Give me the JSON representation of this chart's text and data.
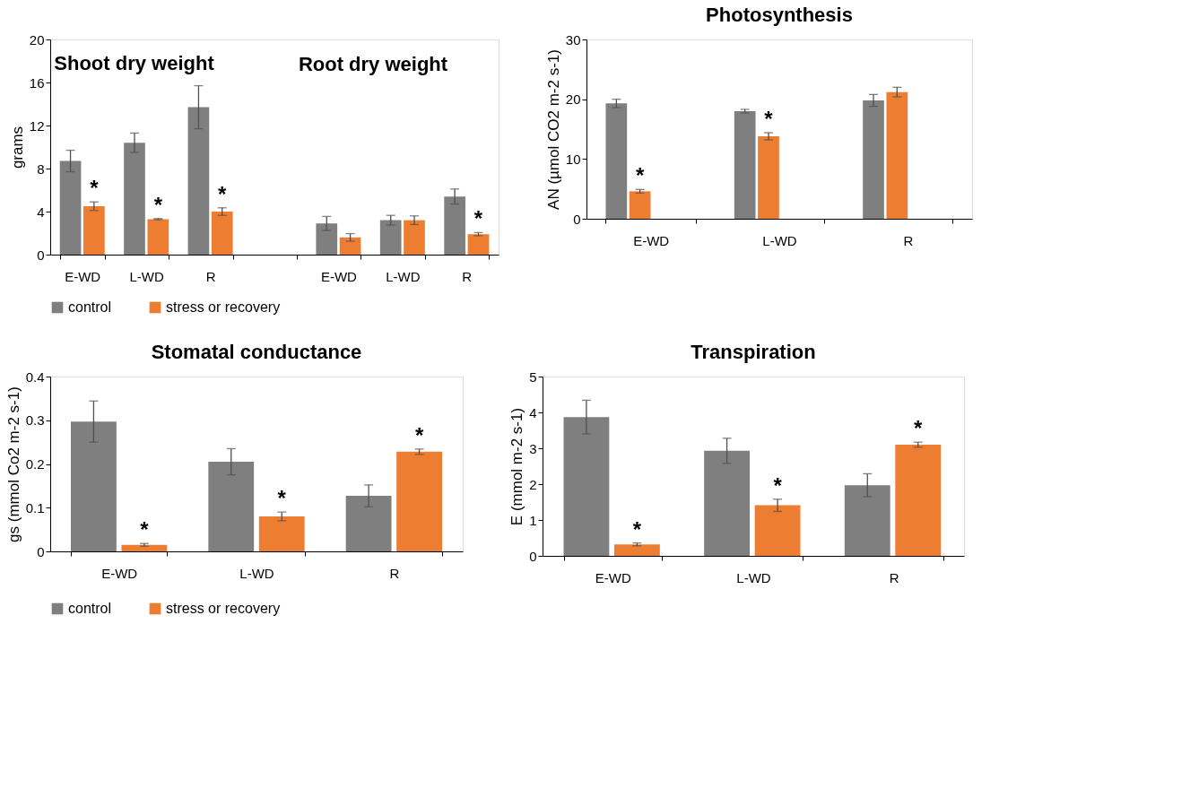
{
  "chart_data": [
    {
      "type": "bar",
      "title": "Shoot dry weight",
      "ylabel": "grams",
      "annotations": [
        "Root dry weight"
      ],
      "categories": [
        "E-WD",
        "L-WD",
        "R",
        null,
        "E-WD",
        "L-WD",
        "R"
      ],
      "ylim": [
        0,
        20
      ],
      "yticks": [
        0,
        4,
        8,
        12,
        16,
        20
      ],
      "grid": false,
      "legend": "bottom",
      "series": [
        {
          "name": "control",
          "color": "#7f7f7f",
          "values": [
            8.7,
            10.4,
            13.7,
            null,
            2.9,
            3.2,
            5.4
          ],
          "errors": [
            1.0,
            0.9,
            2.0,
            null,
            0.65,
            0.45,
            0.7
          ]
        },
        {
          "name": "stress or recovery",
          "color": "#ed7d31",
          "values": [
            4.5,
            3.3,
            4.0,
            null,
            1.6,
            3.2,
            1.9
          ],
          "errors": [
            0.4,
            0.05,
            0.35,
            null,
            0.35,
            0.4,
            0.15
          ],
          "value_labels": [
            "*",
            "*",
            "*",
            null,
            null,
            null,
            "*"
          ]
        }
      ]
    },
    {
      "type": "bar",
      "title": "Photosynthesis",
      "ylabel": "AN (µmol CO2 m-2 s-1)",
      "categories": [
        "E-WD",
        "L-WD",
        "R"
      ],
      "ylim": [
        0,
        30
      ],
      "yticks": [
        0,
        10,
        20,
        30
      ],
      "grid": false,
      "legend": "bottom",
      "series": [
        {
          "name": "control",
          "color": "#7f7f7f",
          "values": [
            19.3,
            18.0,
            19.8
          ],
          "errors": [
            0.7,
            0.3,
            1.0
          ]
        },
        {
          "name": "stress or recovery",
          "color": "#ed7d31",
          "values": [
            4.6,
            13.8,
            21.2
          ],
          "errors": [
            0.3,
            0.6,
            0.8
          ],
          "value_labels": [
            "*",
            "*",
            null
          ]
        }
      ]
    },
    {
      "type": "bar",
      "title": "Stomatal conductance",
      "ylabel": "gs (mmol Co2 m-2 s-1)",
      "categories": [
        "E-WD",
        "L-WD",
        "R"
      ],
      "ylim": [
        0,
        0.4
      ],
      "yticks": [
        0,
        0.1,
        0.2,
        0.3,
        0.4
      ],
      "grid": false,
      "legend": "bottom",
      "series": [
        {
          "name": "control",
          "color": "#7f7f7f",
          "values": [
            0.297,
            0.205,
            0.127
          ],
          "errors": [
            0.047,
            0.03,
            0.025
          ]
        },
        {
          "name": "stress or recovery",
          "color": "#ed7d31",
          "values": [
            0.015,
            0.08,
            0.228
          ],
          "errors": [
            0.003,
            0.01,
            0.006
          ],
          "value_labels": [
            "*",
            "*",
            "*"
          ]
        }
      ]
    },
    {
      "type": "bar",
      "title": "Transpiration",
      "ylabel": "E (mmol m-2 s-1)",
      "categories": [
        "E-WD",
        "L-WD",
        "R"
      ],
      "ylim": [
        0,
        5
      ],
      "yticks": [
        0,
        1,
        2,
        3,
        4,
        5
      ],
      "grid": false,
      "legend": "bottom",
      "series": [
        {
          "name": "control",
          "color": "#7f7f7f",
          "values": [
            3.87,
            2.93,
            1.97
          ],
          "errors": [
            0.47,
            0.35,
            0.32
          ]
        },
        {
          "name": "stress or recovery",
          "color": "#ed7d31",
          "values": [
            0.32,
            1.41,
            3.1
          ],
          "errors": [
            0.04,
            0.17,
            0.07
          ],
          "value_labels": [
            "*",
            "*",
            "*"
          ]
        }
      ]
    }
  ]
}
